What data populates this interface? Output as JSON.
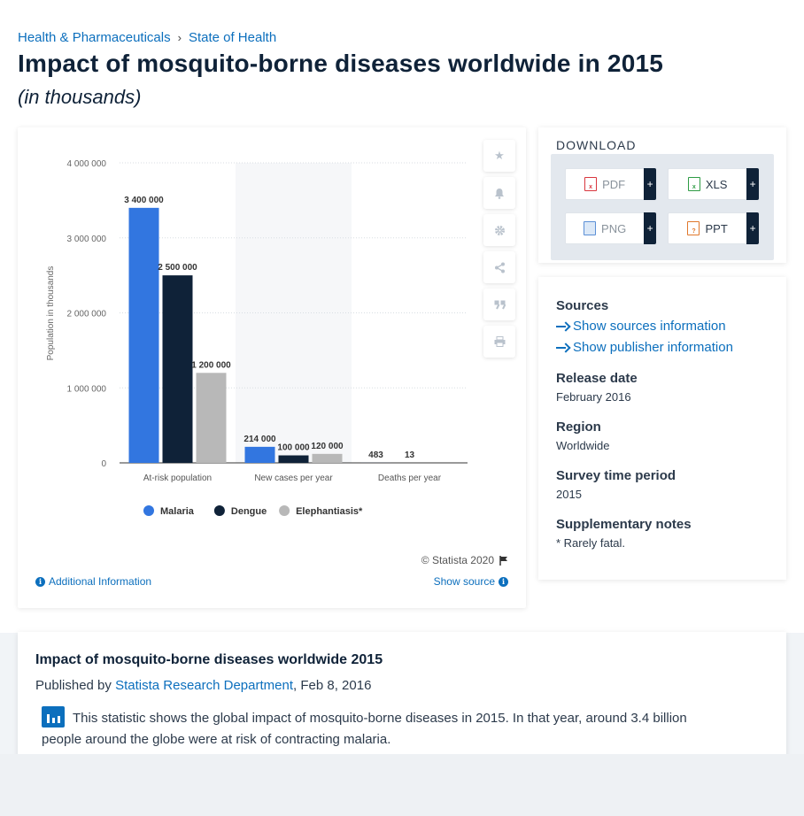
{
  "breadcrumb": {
    "parent": "Health & Pharmaceuticals",
    "separator": "›",
    "current": "State of Health"
  },
  "page": {
    "title": "Impact of mosquito-borne diseases worldwide in 2015",
    "subtitle": "(in thousands)"
  },
  "chart_data": {
    "type": "bar",
    "ylabel": "Population in thousands",
    "ylim": [
      0,
      4000000
    ],
    "yticks": [
      "0",
      "1 000 000",
      "2 000 000",
      "3 000 000",
      "4 000 000"
    ],
    "categories": [
      "At-risk population",
      "New cases per year",
      "Deaths per year"
    ],
    "series": [
      {
        "name": "Malaria",
        "color": "#3276e0",
        "values": [
          3400000,
          214000,
          483
        ],
        "labels": [
          "3 400 000",
          "214 000",
          "483"
        ]
      },
      {
        "name": "Dengue",
        "color": "#0f2238",
        "values": [
          2500000,
          100000,
          13
        ],
        "labels": [
          "2 500 000",
          "100 000",
          "13"
        ]
      },
      {
        "name": "Elephantiasis*",
        "color": "#b8b8b8",
        "values": [
          1200000,
          120000,
          null
        ],
        "labels": [
          "1 200 000",
          "120 000",
          ""
        ]
      }
    ],
    "highlighted_category": "New cases per year",
    "legend_position": "bottom",
    "grid": true
  },
  "chart_footer": {
    "copyright": "© Statista 2020",
    "additional_info": "Additional Information",
    "show_source": "Show source"
  },
  "toolbar": {
    "icons": [
      "star-icon",
      "bell-icon",
      "gear-icon",
      "share-icon",
      "quote-icon",
      "print-icon"
    ]
  },
  "download": {
    "heading": "DOWNLOAD",
    "buttons": [
      {
        "label": "PDF",
        "color": "#d9363e"
      },
      {
        "label": "XLS",
        "color": "#2e9b44"
      },
      {
        "label": "PNG",
        "color": "#5b8fd6"
      },
      {
        "label": "PPT",
        "color": "#e0782c"
      }
    ],
    "plus": "+"
  },
  "info": {
    "sources_label": "Sources",
    "show_sources": "Show sources information",
    "show_publisher": "Show publisher information",
    "release_label": "Release date",
    "release_value": "February 2016",
    "region_label": "Region",
    "region_value": "Worldwide",
    "survey_label": "Survey time period",
    "survey_value": "2015",
    "notes_label": "Supplementary notes",
    "notes_value": "* Rarely fatal."
  },
  "description": {
    "title": "Impact of mosquito-borne diseases worldwide 2015",
    "published_by": "Published by",
    "author": "Statista Research Department",
    "date": ", Feb 8, 2016",
    "text": "This statistic shows the global impact of mosquito-borne diseases in 2015. In that year, around 3.4 billion people around the globe were at risk of contracting malaria."
  }
}
